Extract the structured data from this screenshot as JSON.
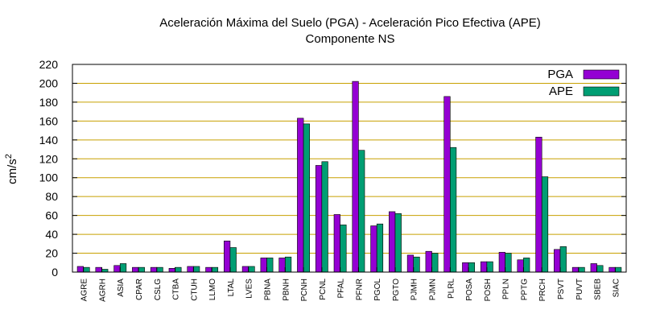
{
  "chart_data": {
    "type": "bar",
    "title": "Aceleración Máxima del Suelo (PGA) -  Aceleración Pico Efectiva (APE)",
    "subtitle": "Componente NS",
    "ylabel": "cm/s",
    "ylabel_superscript": "2",
    "xlabel": "",
    "ylim": [
      0,
      220
    ],
    "yticks": [
      0,
      20,
      40,
      60,
      80,
      100,
      120,
      140,
      160,
      180,
      200,
      220
    ],
    "grid": true,
    "legend_position": "top-right",
    "categories": [
      "AGRE",
      "AGRH",
      "ASIA",
      "CPAR",
      "CSLG",
      "CTBA",
      "CTUH",
      "LLMO",
      "LTAL",
      "LVES",
      "PBNA",
      "PBNH",
      "PCNH",
      "PCNL",
      "PFAL",
      "PFNR",
      "PGOL",
      "PGTO",
      "PJMH",
      "PJMN",
      "PLRL",
      "POSA",
      "POSH",
      "PPLN",
      "PPTG",
      "PRCH",
      "PSVT",
      "PUVT",
      "SBEB",
      "SIAC"
    ],
    "series": [
      {
        "name": "PGA",
        "color": "#9400d3",
        "values": [
          6,
          5,
          7,
          5,
          5,
          4,
          6,
          5,
          33,
          6,
          15,
          15,
          163,
          113,
          61,
          202,
          49,
          64,
          18,
          22,
          186,
          10,
          11,
          21,
          13,
          143,
          24,
          5,
          9,
          5
        ]
      },
      {
        "name": "APE",
        "color": "#009e73",
        "values": [
          5,
          3,
          9,
          5,
          5,
          5,
          6,
          5,
          26,
          6,
          15,
          16,
          157,
          117,
          50,
          129,
          51,
          62,
          16,
          20,
          132,
          10,
          11,
          20,
          15,
          101,
          27,
          5,
          7,
          5
        ]
      }
    ]
  }
}
